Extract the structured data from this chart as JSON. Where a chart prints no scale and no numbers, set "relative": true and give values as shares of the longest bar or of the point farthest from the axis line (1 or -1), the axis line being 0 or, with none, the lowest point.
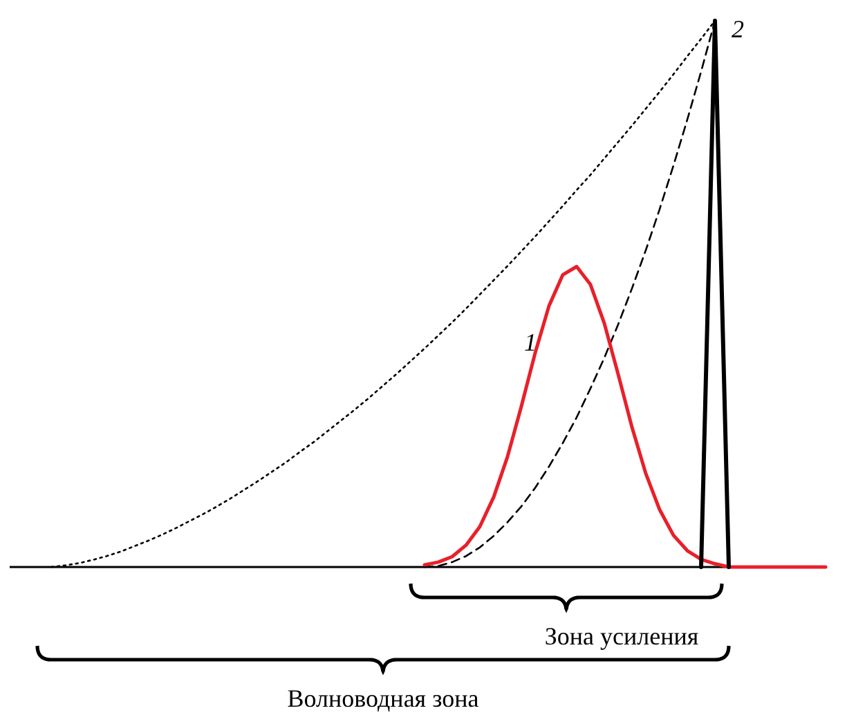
{
  "chart_data": {
    "type": "line",
    "relative": true,
    "categories": [
      null,
      null,
      null,
      null,
      null,
      null,
      null,
      null,
      null,
      null,
      null,
      null,
      null,
      null,
      null,
      null,
      null,
      null,
      null,
      null,
      null,
      null,
      null,
      null,
      null,
      null,
      null,
      null,
      null,
      null,
      null,
      null,
      null,
      null,
      null,
      null,
      null,
      null,
      null,
      null,
      null,
      null,
      null,
      null,
      null,
      null,
      null,
      null,
      null,
      null,
      null,
      null,
      null,
      null,
      null,
      null,
      null,
      null,
      null,
      null
    ],
    "series": [
      {
        "color": "#000000",
        "line_style": "dotted",
        "values": [
          null,
          null,
          null,
          0,
          0.003,
          0.007,
          0.013,
          0.02,
          0.028,
          0.038,
          0.048,
          0.059,
          0.071,
          0.084,
          0.097,
          0.111,
          0.126,
          0.142,
          0.158,
          0.175,
          0.192,
          0.211,
          0.229,
          0.249,
          0.269,
          0.289,
          0.31,
          0.332,
          0.354,
          0.377,
          0.4,
          0.424,
          0.448,
          0.473,
          0.499,
          0.525,
          0.551,
          0.578,
          0.605,
          0.633,
          0.661,
          0.69,
          0.718,
          0.748,
          0.778,
          0.808,
          0.839,
          0.87,
          0.902,
          0.935,
          0.967,
          1,
          null,
          null,
          null,
          null,
          null,
          null,
          null,
          null
        ]
      },
      {
        "color": "#000000",
        "line_style": "dashed",
        "values": [
          null,
          null,
          null,
          null,
          null,
          null,
          null,
          null,
          null,
          null,
          null,
          null,
          null,
          null,
          null,
          null,
          null,
          null,
          null,
          null,
          null,
          null,
          null,
          null,
          null,
          null,
          null,
          null,
          null,
          null,
          0,
          0.002,
          0.009,
          0.02,
          0.036,
          0.057,
          0.082,
          0.111,
          0.145,
          0.184,
          0.227,
          0.274,
          0.327,
          0.383,
          0.444,
          0.51,
          0.58,
          0.655,
          0.735,
          0.819,
          0.907,
          1,
          null,
          null,
          null,
          null,
          null,
          null,
          null,
          null
        ]
      },
      {
        "name": "1",
        "color": "#e8202a",
        "line_style": "solid",
        "values": [
          null,
          null,
          null,
          null,
          null,
          null,
          null,
          null,
          null,
          null,
          null,
          null,
          null,
          null,
          null,
          null,
          null,
          null,
          null,
          null,
          null,
          null,
          null,
          null,
          null,
          null,
          null,
          null,
          null,
          null,
          0.004,
          0.009,
          0.019,
          0.04,
          0.074,
          0.128,
          0.202,
          0.294,
          0.392,
          0.478,
          0.535,
          0.55,
          0.517,
          0.446,
          0.353,
          0.256,
          0.171,
          0.105,
          0.058,
          0.03,
          0.014,
          0.006,
          0,
          0,
          0,
          0,
          0,
          0,
          0,
          0
        ]
      },
      {
        "name": "2",
        "color": "#000000",
        "line_style": "solid",
        "values": [
          null,
          null,
          null,
          null,
          null,
          null,
          null,
          null,
          null,
          null,
          null,
          null,
          null,
          null,
          null,
          null,
          null,
          null,
          null,
          null,
          null,
          null,
          null,
          null,
          null,
          null,
          null,
          null,
          null,
          null,
          null,
          null,
          null,
          null,
          null,
          null,
          null,
          null,
          null,
          null,
          null,
          null,
          null,
          null,
          null,
          null,
          null,
          null,
          null,
          null,
          0,
          1,
          0,
          null,
          null,
          null,
          null,
          null,
          null,
          null
        ]
      }
    ],
    "annotations": [
      "Зона усиления",
      "Волноводная зона"
    ]
  }
}
